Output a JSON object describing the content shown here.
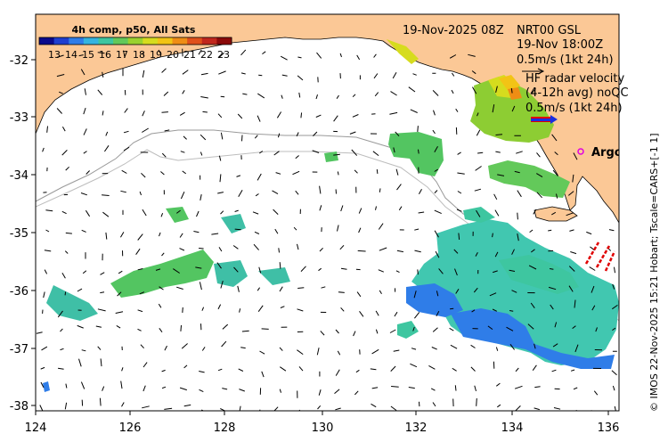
{
  "colorbar": {
    "title": "4h comp, p50, All Sats",
    "ticks": [
      "13",
      "14",
      "15",
      "16",
      "17",
      "18",
      "19",
      "20",
      "21",
      "22",
      "23"
    ],
    "colors": [
      "#0a0a8c",
      "#1f3fd0",
      "#2f7de8",
      "#35b4e0",
      "#3ec6a0",
      "#63c95a",
      "#9ad22e",
      "#d6dc1e",
      "#f2c415",
      "#ef8d14",
      "#e0501b",
      "#c1271d",
      "#8b0a0a"
    ]
  },
  "header": {
    "date": "19-Nov-2025 08Z",
    "product": "NRT00 GSL",
    "time": "19-Nov 18:00Z",
    "scale": "0.5m/s (1kt 24h)"
  },
  "hf_legend": {
    "line1": "HF radar velocity",
    "line2": "(4-12h avg) noQC",
    "line3": "0.5m/s (1kt 24h)"
  },
  "argo_label": "Argo",
  "side_caption": "© IMOS 22-Nov-2025 15:21 Hobart; Tscale=CARS+[-1 1]",
  "axes": {
    "x_ticks": [
      "124",
      "126",
      "128",
      "130",
      "132",
      "134",
      "136"
    ],
    "y_ticks": [
      "-32",
      "-33",
      "-34",
      "-35",
      "-36",
      "-37",
      "-38"
    ]
  },
  "map": {
    "land_color": "#fbc896",
    "ocean_color": "#ffffff",
    "lon_range": [
      124,
      136.5
    ],
    "lat_range": [
      -38.1,
      -31.3
    ]
  }
}
